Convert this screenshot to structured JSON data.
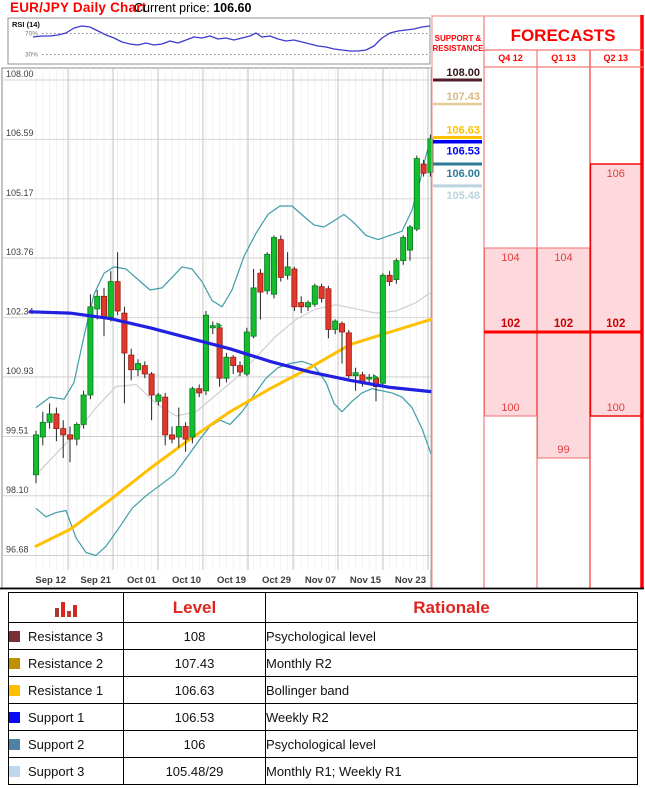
{
  "header": {
    "title": "EUR/JPY Daily Chart",
    "price_label": "Current price:",
    "price_value": "106.60"
  },
  "rsi": {
    "label": "RSI (14)",
    "upper_label": "70%",
    "lower_label": "30%",
    "line_color": "#3b3bd1",
    "points": [
      [
        33,
        37
      ],
      [
        42,
        36
      ],
      [
        50,
        36
      ],
      [
        58,
        35
      ],
      [
        66,
        33
      ],
      [
        74,
        28
      ],
      [
        82,
        26
      ],
      [
        90,
        27
      ],
      [
        98,
        31
      ],
      [
        106,
        35
      ],
      [
        114,
        38
      ],
      [
        122,
        42
      ],
      [
        130,
        44
      ],
      [
        138,
        45
      ],
      [
        146,
        43
      ],
      [
        154,
        45
      ],
      [
        162,
        44
      ],
      [
        170,
        41
      ],
      [
        178,
        43
      ],
      [
        186,
        40
      ],
      [
        194,
        37
      ],
      [
        202,
        38
      ],
      [
        210,
        36
      ],
      [
        218,
        39
      ],
      [
        226,
        38
      ],
      [
        234,
        40
      ],
      [
        242,
        38
      ],
      [
        250,
        36
      ],
      [
        256,
        33
      ],
      [
        262,
        37
      ],
      [
        270,
        36
      ],
      [
        278,
        39
      ],
      [
        286,
        41
      ],
      [
        294,
        40
      ],
      [
        302,
        42
      ],
      [
        310,
        44
      ],
      [
        318,
        46
      ],
      [
        326,
        47
      ],
      [
        334,
        49
      ],
      [
        342,
        50
      ],
      [
        350,
        51
      ],
      [
        358,
        51
      ],
      [
        366,
        50
      ],
      [
        374,
        46
      ],
      [
        382,
        38
      ],
      [
        390,
        33
      ],
      [
        398,
        31
      ],
      [
        406,
        30
      ],
      [
        414,
        29
      ],
      [
        422,
        27
      ],
      [
        430,
        26
      ]
    ]
  },
  "chart_data": {
    "type": "candlestick",
    "instrument": "EUR/JPY",
    "timeframe": "Daily",
    "current_price": 106.6,
    "ylim": [
      96.2,
      108.3
    ],
    "grid": true,
    "y_ticks": [
      108.0,
      106.59,
      105.17,
      103.76,
      102.34,
      100.93,
      99.51,
      98.1,
      96.68
    ],
    "x_ticks": [
      "Sep 12",
      "Sep 21",
      "Oct 01",
      "Oct 10",
      "Oct 19",
      "Oct 29",
      "Nov 07",
      "Nov 15",
      "Nov 23"
    ],
    "candles": [
      [
        98.6,
        99.65,
        98.4,
        99.55
      ],
      [
        99.5,
        100.1,
        99.3,
        99.85
      ],
      [
        99.85,
        100.3,
        99.7,
        100.05
      ],
      [
        100.05,
        100.2,
        99.4,
        99.7
      ],
      [
        99.7,
        99.9,
        99.0,
        99.55
      ],
      [
        99.55,
        99.75,
        98.9,
        99.45
      ],
      [
        99.45,
        99.85,
        99.3,
        99.8
      ],
      [
        99.8,
        100.6,
        99.7,
        100.5
      ],
      [
        100.5,
        102.9,
        100.4,
        102.6
      ],
      [
        102.55,
        103.0,
        102.3,
        102.85
      ],
      [
        102.85,
        103.05,
        101.9,
        102.35
      ],
      [
        102.35,
        103.45,
        102.25,
        103.2
      ],
      [
        103.2,
        103.9,
        102.4,
        102.5
      ],
      [
        102.45,
        102.6,
        100.3,
        101.5
      ],
      [
        101.45,
        101.6,
        100.85,
        101.1
      ],
      [
        101.1,
        101.35,
        100.95,
        101.25
      ],
      [
        101.2,
        101.3,
        100.9,
        101.0
      ],
      [
        101.0,
        101.05,
        99.9,
        100.5
      ],
      [
        100.35,
        100.55,
        100.25,
        100.5
      ],
      [
        100.45,
        100.55,
        99.3,
        99.55
      ],
      [
        99.55,
        99.75,
        99.35,
        99.45
      ],
      [
        99.5,
        100.2,
        99.25,
        99.75
      ],
      [
        99.75,
        99.85,
        99.15,
        99.45
      ],
      [
        99.5,
        100.7,
        99.35,
        100.65
      ],
      [
        100.65,
        100.75,
        100.45,
        100.55
      ],
      [
        100.6,
        102.5,
        100.5,
        102.4
      ],
      [
        102.1,
        102.25,
        101.95,
        102.15
      ],
      [
        102.1,
        102.2,
        100.7,
        100.9
      ],
      [
        100.9,
        101.5,
        100.8,
        101.4
      ],
      [
        101.4,
        101.45,
        101.0,
        101.2
      ],
      [
        101.2,
        101.3,
        100.95,
        101.05
      ],
      [
        101.0,
        102.1,
        100.95,
        102.0
      ],
      [
        101.9,
        103.5,
        101.85,
        103.05
      ],
      [
        103.4,
        103.5,
        102.3,
        102.95
      ],
      [
        102.98,
        103.9,
        102.9,
        103.85
      ],
      [
        102.9,
        104.3,
        102.8,
        104.25
      ],
      [
        104.2,
        104.3,
        103.2,
        103.3
      ],
      [
        103.35,
        103.9,
        103.25,
        103.55
      ],
      [
        103.5,
        103.55,
        102.5,
        102.6
      ],
      [
        102.7,
        102.85,
        102.45,
        102.6
      ],
      [
        102.6,
        102.75,
        102.5,
        102.7
      ],
      [
        102.66,
        103.15,
        102.6,
        103.1
      ],
      [
        103.08,
        103.15,
        102.7,
        102.8
      ],
      [
        103.03,
        103.1,
        101.85,
        102.06
      ],
      [
        102.06,
        102.3,
        101.95,
        102.26
      ],
      [
        102.2,
        102.25,
        101.25,
        102.0
      ],
      [
        101.98,
        102.05,
        100.9,
        100.96
      ],
      [
        100.96,
        101.15,
        100.6,
        101.03
      ],
      [
        100.98,
        101.05,
        100.7,
        100.8
      ],
      [
        100.88,
        101.0,
        100.75,
        100.92
      ],
      [
        100.9,
        100.95,
        100.35,
        100.7
      ],
      [
        100.78,
        103.4,
        100.7,
        103.35
      ],
      [
        103.35,
        103.45,
        103.1,
        103.2
      ],
      [
        103.25,
        103.75,
        103.15,
        103.7
      ],
      [
        103.7,
        104.3,
        103.6,
        104.25
      ],
      [
        103.95,
        104.55,
        103.7,
        104.5
      ],
      [
        104.45,
        106.2,
        104.4,
        106.13
      ],
      [
        106.0,
        106.1,
        105.7,
        105.78
      ],
      [
        105.8,
        106.7,
        105.7,
        106.6
      ]
    ],
    "markers": [
      26,
      49
    ],
    "overlays": {
      "bollinger_upper": [
        [
          36,
          100.2
        ],
        [
          50,
          100.45
        ],
        [
          64,
          100.4
        ],
        [
          74,
          100.8
        ],
        [
          84,
          101.9
        ],
        [
          94,
          102.9
        ],
        [
          104,
          103.4
        ],
        [
          114,
          103.55
        ],
        [
          126,
          103.5
        ],
        [
          138,
          103.25
        ],
        [
          150,
          103.0
        ],
        [
          162,
          103.05
        ],
        [
          172,
          103.3
        ],
        [
          182,
          103.55
        ],
        [
          192,
          103.5
        ],
        [
          202,
          103.2
        ],
        [
          212,
          102.75
        ],
        [
          222,
          102.6
        ],
        [
          232,
          103.0
        ],
        [
          244,
          103.8
        ],
        [
          256,
          104.35
        ],
        [
          268,
          104.8
        ],
        [
          280,
          105.0
        ],
        [
          292,
          105.0
        ],
        [
          304,
          104.75
        ],
        [
          314,
          104.55
        ],
        [
          324,
          104.5
        ],
        [
          334,
          104.65
        ],
        [
          344,
          104.8
        ],
        [
          354,
          104.6
        ],
        [
          366,
          104.3
        ],
        [
          378,
          104.2
        ],
        [
          390,
          104.3
        ],
        [
          402,
          104.4
        ],
        [
          412,
          104.9
        ],
        [
          420,
          105.6
        ],
        [
          426,
          106.2
        ],
        [
          431,
          106.6
        ]
      ],
      "bollinger_mid": [
        [
          36,
          98.6
        ],
        [
          56,
          99.1
        ],
        [
          76,
          99.6
        ],
        [
          96,
          100.2
        ],
        [
          116,
          100.7
        ],
        [
          136,
          100.75
        ],
        [
          156,
          100.3
        ],
        [
          176,
          100.0
        ],
        [
          196,
          100.1
        ],
        [
          216,
          100.5
        ],
        [
          236,
          100.9
        ],
        [
          256,
          101.4
        ],
        [
          276,
          101.9
        ],
        [
          296,
          102.3
        ],
        [
          316,
          102.55
        ],
        [
          336,
          102.65
        ],
        [
          356,
          102.55
        ],
        [
          376,
          102.45
        ],
        [
          396,
          102.5
        ],
        [
          416,
          102.7
        ],
        [
          431,
          102.95
        ]
      ],
      "bollinger_lower": [
        [
          36,
          97.8
        ],
        [
          46,
          97.6
        ],
        [
          56,
          97.7
        ],
        [
          66,
          97.75
        ],
        [
          76,
          97.1
        ],
        [
          86,
          96.75
        ],
        [
          96,
          96.68
        ],
        [
          106,
          96.9
        ],
        [
          118,
          97.3
        ],
        [
          132,
          97.8
        ],
        [
          146,
          98.1
        ],
        [
          160,
          98.35
        ],
        [
          174,
          98.6
        ],
        [
          188,
          99.05
        ],
        [
          200,
          99.45
        ],
        [
          210,
          99.75
        ],
        [
          220,
          99.9
        ],
        [
          230,
          99.8
        ],
        [
          242,
          100.1
        ],
        [
          254,
          100.5
        ],
        [
          266,
          100.9
        ],
        [
          278,
          101.15
        ],
        [
          290,
          101.25
        ],
        [
          302,
          101.3
        ],
        [
          314,
          101.2
        ],
        [
          326,
          100.8
        ],
        [
          334,
          100.3
        ],
        [
          342,
          100.1
        ],
        [
          352,
          100.35
        ],
        [
          362,
          100.55
        ],
        [
          372,
          100.65
        ],
        [
          382,
          100.6
        ],
        [
          392,
          100.55
        ],
        [
          402,
          100.45
        ],
        [
          412,
          100.2
        ],
        [
          422,
          99.7
        ],
        [
          431,
          99.1
        ]
      ],
      "ma_slow_blue": [
        [
          30,
          102.48
        ],
        [
          70,
          102.45
        ],
        [
          110,
          102.32
        ],
        [
          150,
          102.1
        ],
        [
          190,
          101.85
        ],
        [
          230,
          101.6
        ],
        [
          270,
          101.3
        ],
        [
          310,
          101.05
        ],
        [
          350,
          100.85
        ],
        [
          390,
          100.68
        ],
        [
          431,
          100.58
        ]
      ],
      "ma_fast_yellow": [
        [
          36,
          96.9
        ],
        [
          70,
          97.3
        ],
        [
          110,
          98.0
        ],
        [
          150,
          98.75
        ],
        [
          190,
          99.45
        ],
        [
          230,
          100.1
        ],
        [
          270,
          100.65
        ],
        [
          310,
          101.15
        ],
        [
          350,
          101.7
        ],
        [
          390,
          102.0
        ],
        [
          431,
          102.3
        ]
      ]
    },
    "colors": {
      "candle_up": "#12bd2e",
      "candle_up_border": "#0c7a1e",
      "candle_down": "#e0392c",
      "candle_down_border": "#961d14",
      "bollinger": "#3f9da8",
      "bollinger_mid": "#cfcfcf",
      "ma_slow": "#2020e0",
      "ma_fast": "#ffc000"
    }
  },
  "sr_panel": {
    "title_line1": "SUPPORT &",
    "title_line2": "RESISTANCE",
    "levels": [
      {
        "value": "108.00",
        "price": 108.0,
        "side": "resistance",
        "text_color": "#33141a",
        "line_color": "#4f1f28",
        "line_width": 3
      },
      {
        "value": "107.43",
        "price": 107.43,
        "side": "resistance",
        "text_color": "#d9ba80",
        "line_color": "#e6cb97",
        "line_width": 2.5
      },
      {
        "value": "106.63",
        "price": 106.63,
        "side": "resistance",
        "text_color": "#ffc000",
        "line_color": "#ffc000",
        "line_width": 3
      },
      {
        "value": "106.53",
        "price": 106.53,
        "side": "support",
        "text_color": "#0000f0",
        "line_color": "#0000f0",
        "line_width": 3.5
      },
      {
        "value": "106.00",
        "price": 106.0,
        "side": "support",
        "text_color": "#2e7b97",
        "line_color": "#2e7b97",
        "line_width": 3
      },
      {
        "value": "105.48",
        "price": 105.48,
        "side": "support",
        "text_color": "#b9d3df",
        "line_color": "#b9d3df",
        "line_width": 3
      }
    ]
  },
  "forecasts": {
    "title": "FORECASTS",
    "mid_level": 102,
    "columns": [
      {
        "label": "Q4 12",
        "high": 104,
        "low": 100,
        "mid": 102
      },
      {
        "label": "Q1 13",
        "high": 104,
        "low": 99,
        "mid": 102
      },
      {
        "label": "Q2 13",
        "high": 106,
        "low": 100,
        "mid": 102
      }
    ],
    "fill": "#fdd9dd",
    "grid_color": "#f27a7a",
    "accent": "#ff0000",
    "text_color": "#e23d3d"
  },
  "table": {
    "level_header": "Level",
    "rationale_header": "Rationale",
    "rows": [
      {
        "label": "Resistance 3",
        "swatch": "#7a2e36",
        "level": "108",
        "rationale": "Psychological level"
      },
      {
        "label": "Resistance 2",
        "swatch": "#bf9000",
        "level": "107.43",
        "rationale": "Monthly R2"
      },
      {
        "label": "Resistance 1",
        "swatch": "#ffc000",
        "level": "106.63",
        "rationale": "Bollinger band"
      },
      {
        "label": "Support 1",
        "swatch": "#0909f5",
        "level": "106.53",
        "rationale": "Weekly R2"
      },
      {
        "label": "Support 2",
        "swatch": "#4f81a4",
        "level": "106",
        "rationale": "Psychological level"
      },
      {
        "label": "Support 3",
        "swatch": "#bdd7ee",
        "level": "105.48/29",
        "rationale": "Monthly R1; Weekly R1"
      }
    ]
  }
}
